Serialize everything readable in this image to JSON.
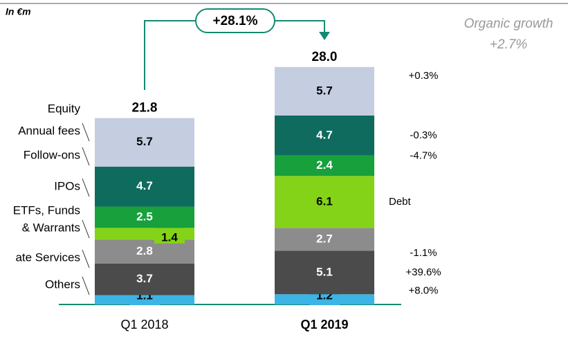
{
  "chart_data": {
    "type": "stacked_bar",
    "note": "In €m",
    "categories": [
      "Q1 2018",
      "Q1 2019"
    ],
    "series": [
      {
        "color": "#3cb4e5",
        "label_color": "#000000",
        "values": [
          1.1,
          1.2
        ]
      },
      {
        "color": "#4b4b4b",
        "label_color": "#ffffff",
        "values": [
          3.7,
          5.1
        ]
      },
      {
        "color": "#8c8c8c",
        "label_color": "#ffffff",
        "values": [
          2.8,
          2.7
        ]
      },
      {
        "color": "#84d318",
        "label_color": "#000000",
        "values": [
          1.4,
          6.1
        ]
      },
      {
        "color": "#17a03c",
        "label_color": "#ffffff",
        "values": [
          2.5,
          2.4
        ]
      },
      {
        "color": "#0e6b5e",
        "label_color": "#ffffff",
        "values": [
          4.7,
          4.7
        ]
      },
      {
        "color": "#c5cde0",
        "label_color": "#000000",
        "values": [
          5.7,
          5.7
        ]
      }
    ],
    "totals": [
      21.8,
      28.0
    ],
    "totals_labels": [
      "21.8",
      "28.0"
    ],
    "change_labels": [
      "+8.0%",
      "+39.6%",
      "-1.1%",
      "Debt",
      "-4.7%",
      "-0.3%",
      "+0.3%"
    ],
    "left_labels": [
      "Equity",
      "Annual fees",
      "Follow-ons",
      "IPOs",
      "ETFs, Funds",
      "& Warrants",
      "ate Services",
      "Others"
    ],
    "growth_annotation": "+28.1%",
    "organic_growth": [
      "Organic growth",
      "+2.7%"
    ]
  }
}
